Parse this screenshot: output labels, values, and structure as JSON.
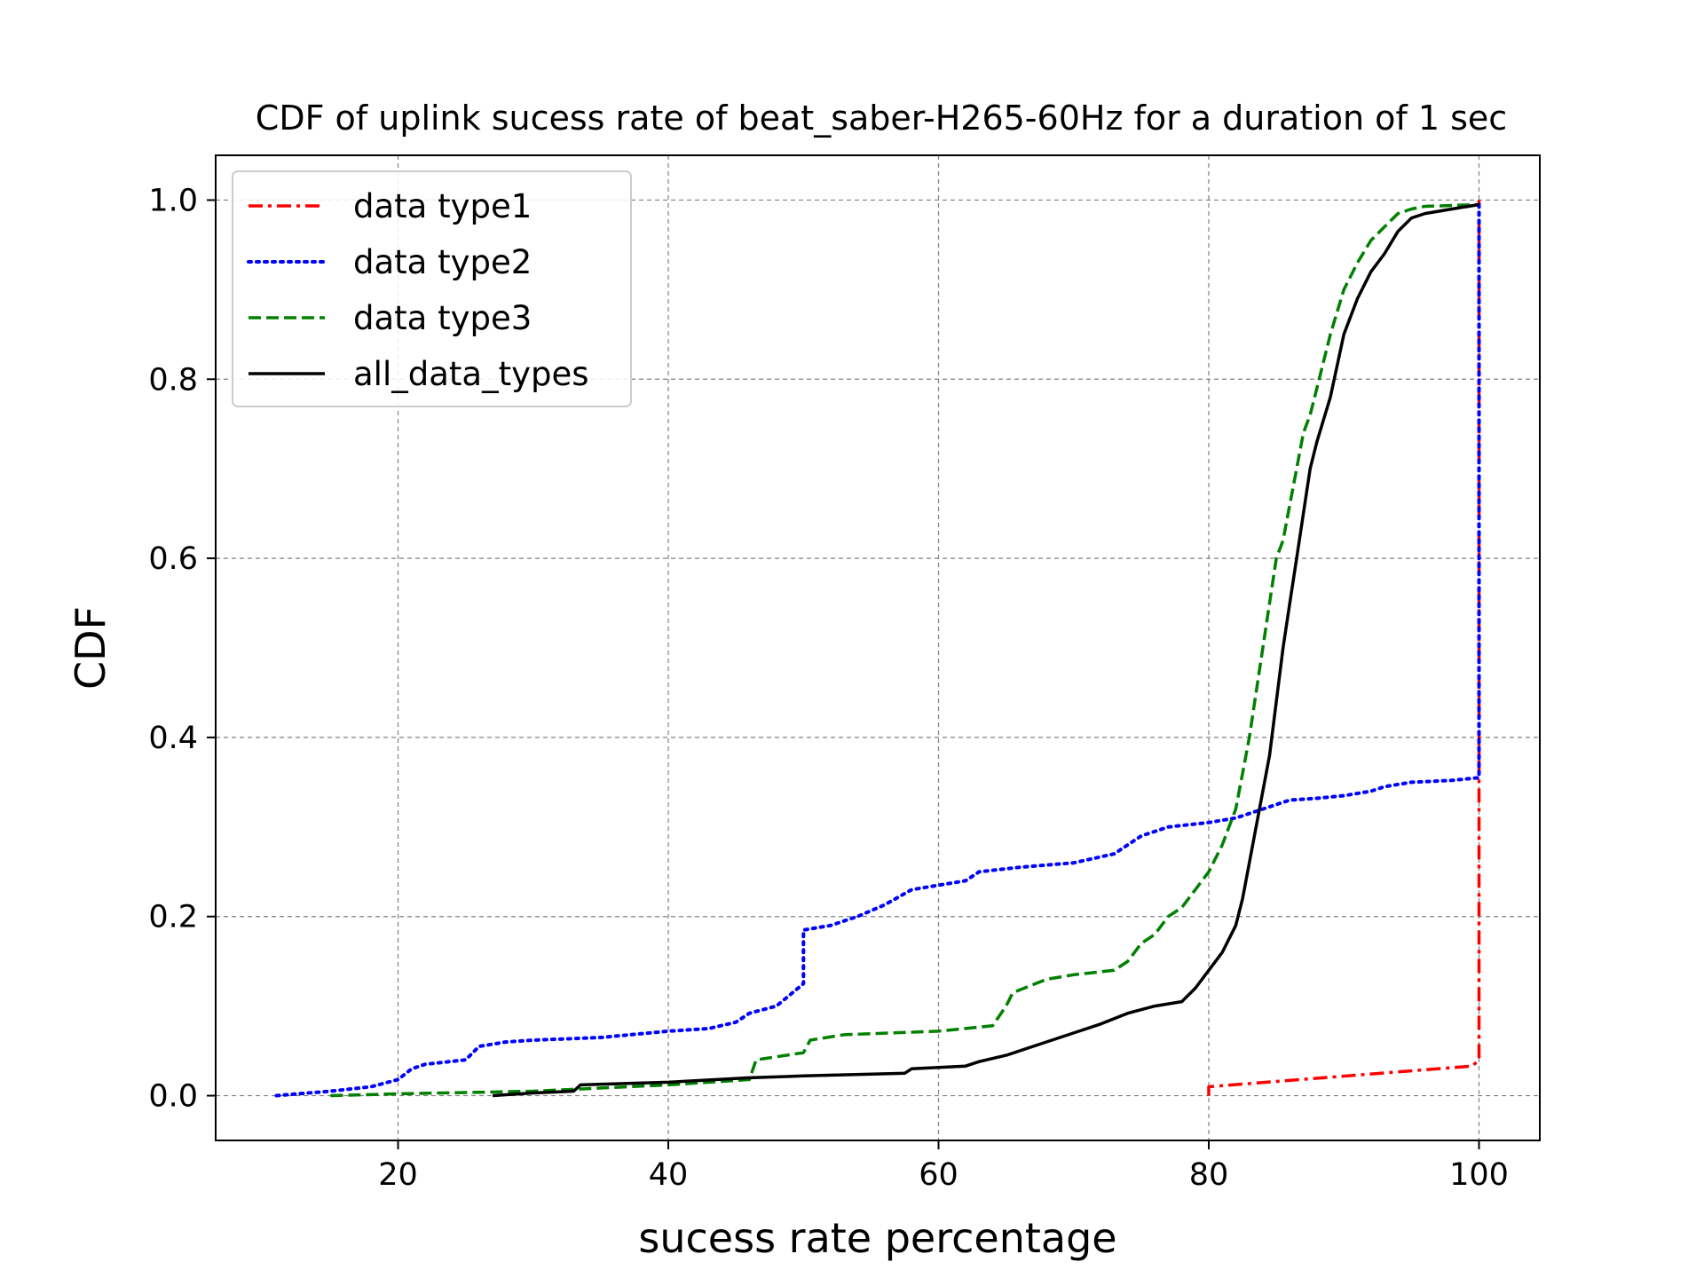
{
  "chart_data": {
    "type": "line",
    "title": "CDF of uplink sucess rate of beat_saber-H265-60Hz for a duration of 1 sec",
    "xlabel": "sucess rate percentage",
    "ylabel": "CDF",
    "xlim": [
      6.5,
      104.5
    ],
    "ylim": [
      -0.05,
      1.05
    ],
    "xticks": [
      20,
      40,
      60,
      80,
      100
    ],
    "xtick_labels": [
      "20",
      "40",
      "60",
      "80",
      "100"
    ],
    "yticks": [
      0.0,
      0.2,
      0.4,
      0.6,
      0.8,
      1.0
    ],
    "ytick_labels": [
      "0.0",
      "0.2",
      "0.4",
      "0.6",
      "0.8",
      "1.0"
    ],
    "grid": true,
    "legend_position": "top-left",
    "series": [
      {
        "name": "data type1",
        "color": "#ff0000",
        "dash": "dashdot",
        "x": [
          80,
          80,
          99.5,
          100,
          100
        ],
        "y": [
          0.0,
          0.01,
          0.033,
          0.04,
          1.0
        ]
      },
      {
        "name": "data type2",
        "color": "#0000ff",
        "dash": "dotted",
        "x": [
          11,
          15,
          18,
          20,
          21,
          22,
          25,
          26,
          28,
          30,
          35,
          40,
          43,
          45,
          46,
          48,
          50,
          50,
          52,
          54,
          56,
          58,
          60,
          62,
          63,
          66,
          70,
          73,
          75,
          77,
          80,
          82,
          84,
          86,
          88,
          90,
          92,
          93,
          95,
          98,
          100,
          100
        ],
        "y": [
          0.0,
          0.005,
          0.01,
          0.018,
          0.03,
          0.035,
          0.04,
          0.055,
          0.06,
          0.062,
          0.065,
          0.072,
          0.075,
          0.082,
          0.092,
          0.1,
          0.125,
          0.185,
          0.19,
          0.2,
          0.213,
          0.23,
          0.235,
          0.24,
          0.25,
          0.255,
          0.26,
          0.27,
          0.29,
          0.3,
          0.305,
          0.31,
          0.32,
          0.33,
          0.332,
          0.335,
          0.34,
          0.345,
          0.35,
          0.352,
          0.355,
          1.0
        ]
      },
      {
        "name": "data type3",
        "color": "#008000",
        "dash": "dashed",
        "x": [
          15,
          20,
          30,
          40,
          46,
          46.5,
          50,
          50.5,
          53,
          60,
          64,
          65,
          65.5,
          68,
          70,
          73,
          74,
          75,
          76,
          77,
          78,
          79,
          80,
          81,
          82,
          82.5,
          83,
          83.5,
          84,
          84.5,
          85,
          85.5,
          86,
          86.5,
          87,
          87.5,
          88,
          89,
          90,
          91,
          92,
          93,
          94,
          95,
          96,
          100
        ],
        "y": [
          0.0,
          0.002,
          0.005,
          0.012,
          0.018,
          0.04,
          0.048,
          0.062,
          0.068,
          0.072,
          0.078,
          0.1,
          0.115,
          0.13,
          0.135,
          0.14,
          0.15,
          0.17,
          0.18,
          0.2,
          0.21,
          0.23,
          0.25,
          0.28,
          0.32,
          0.36,
          0.4,
          0.45,
          0.5,
          0.55,
          0.6,
          0.62,
          0.66,
          0.7,
          0.74,
          0.76,
          0.79,
          0.85,
          0.9,
          0.93,
          0.955,
          0.97,
          0.985,
          0.99,
          0.993,
          0.995
        ]
      },
      {
        "name": "all_data_types",
        "color": "#000000",
        "dash": "solid",
        "x": [
          27,
          30,
          33,
          33.5,
          40,
          46,
          50,
          57.5,
          58,
          62,
          63,
          65,
          67,
          70,
          72,
          74,
          76,
          78,
          79,
          80,
          81,
          82,
          82.5,
          83,
          83.5,
          84,
          84.5,
          85,
          85.5,
          86,
          86.5,
          87,
          87.5,
          88,
          89,
          90,
          91,
          92,
          93,
          94,
          95,
          96,
          98,
          100
        ],
        "y": [
          0.0,
          0.003,
          0.005,
          0.012,
          0.015,
          0.02,
          0.022,
          0.025,
          0.03,
          0.033,
          0.038,
          0.045,
          0.055,
          0.07,
          0.08,
          0.092,
          0.1,
          0.105,
          0.12,
          0.14,
          0.16,
          0.19,
          0.22,
          0.26,
          0.3,
          0.34,
          0.38,
          0.44,
          0.5,
          0.55,
          0.6,
          0.65,
          0.7,
          0.73,
          0.78,
          0.85,
          0.89,
          0.92,
          0.94,
          0.965,
          0.98,
          0.985,
          0.99,
          0.995
        ]
      }
    ]
  }
}
